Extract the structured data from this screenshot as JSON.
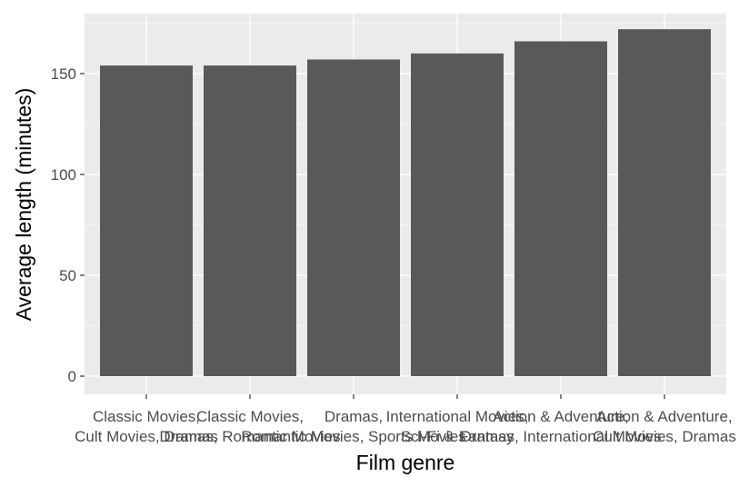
{
  "chart_data": {
    "type": "bar",
    "title": "",
    "xlabel": "Film genre",
    "ylabel": "Average length (minutes)",
    "categories": [
      [
        "Classic Movies,",
        "Cult Movies, Dramas"
      ],
      [
        "Classic Movies,",
        "Dramas, Romantic Movies"
      ],
      [
        "Dramas,",
        "Romantic Movies, Sports Movies"
      ],
      [
        "International Movies,",
        "Sci-Fi & Fantasy"
      ],
      [
        "Action & Adventure,",
        "Dramas, International Movies"
      ],
      [
        "Action & Adventure,",
        "Cult Movies, Dramas"
      ]
    ],
    "values": [
      154,
      154,
      157,
      160,
      166,
      172
    ],
    "ylim": [
      0,
      180
    ],
    "yticks": [
      0,
      50,
      100,
      150
    ],
    "grid": true,
    "colors": {
      "panel": "#ebebeb",
      "grid_major": "#ffffff",
      "bar": "#595959",
      "tick": "#333333"
    }
  }
}
